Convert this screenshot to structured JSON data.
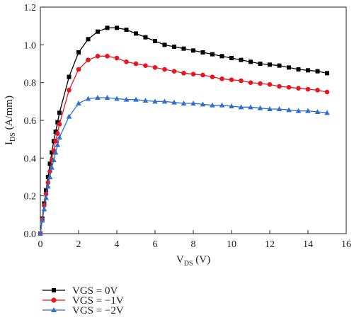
{
  "chart_data": {
    "type": "line",
    "xlabel": {
      "main": "V",
      "sub": "DS",
      "unit": " (V)"
    },
    "ylabel": {
      "main": "I",
      "sub": "DS",
      "unit": " (A/mm)"
    },
    "xlim": [
      0,
      16
    ],
    "ylim": [
      0,
      1.2
    ],
    "xticks": [
      "0",
      "2",
      "4",
      "6",
      "8",
      "10",
      "12",
      "14",
      "16"
    ],
    "yticks": [
      "0.0",
      "0.2",
      "0.4",
      "0.6",
      "0.8",
      "1.0",
      "1.2"
    ],
    "grid": false,
    "legend_position": "bottom-left, below plot",
    "series": [
      {
        "name": "VGS = 0V",
        "color": "#000000",
        "marker": "square",
        "x": [
          0,
          0.1,
          0.2,
          0.3,
          0.4,
          0.5,
          0.6,
          0.7,
          0.8,
          0.9,
          1.0,
          1.5,
          2.0,
          2.5,
          3.0,
          3.5,
          4.0,
          4.5,
          5.0,
          5.5,
          6.0,
          6.5,
          7.0,
          7.5,
          8.0,
          8.5,
          9.0,
          9.5,
          10.0,
          10.5,
          11.0,
          11.5,
          12.0,
          12.5,
          13.0,
          13.5,
          14.0,
          14.5,
          15.0
        ],
        "values": [
          0.0,
          0.08,
          0.16,
          0.23,
          0.3,
          0.37,
          0.43,
          0.49,
          0.54,
          0.59,
          0.64,
          0.83,
          0.96,
          1.03,
          1.07,
          1.09,
          1.09,
          1.08,
          1.06,
          1.04,
          1.02,
          1.0,
          0.99,
          0.98,
          0.97,
          0.96,
          0.95,
          0.94,
          0.93,
          0.92,
          0.91,
          0.9,
          0.895,
          0.89,
          0.88,
          0.87,
          0.865,
          0.86,
          0.85
        ]
      },
      {
        "name": "VGS = −1V",
        "color": "#e8141e",
        "marker": "circle",
        "x": [
          0,
          0.1,
          0.2,
          0.3,
          0.4,
          0.5,
          0.6,
          0.7,
          0.8,
          0.9,
          1.0,
          1.5,
          2.0,
          2.5,
          3.0,
          3.5,
          4.0,
          4.5,
          5.0,
          5.5,
          6.0,
          6.5,
          7.0,
          7.5,
          8.0,
          8.5,
          9.0,
          9.5,
          10.0,
          10.5,
          11.0,
          11.5,
          12.0,
          12.5,
          13.0,
          13.5,
          14.0,
          14.5,
          15.0
        ],
        "values": [
          0.0,
          0.075,
          0.15,
          0.21,
          0.27,
          0.33,
          0.39,
          0.44,
          0.49,
          0.53,
          0.58,
          0.76,
          0.87,
          0.92,
          0.94,
          0.94,
          0.93,
          0.91,
          0.9,
          0.89,
          0.88,
          0.87,
          0.86,
          0.85,
          0.845,
          0.84,
          0.83,
          0.82,
          0.815,
          0.81,
          0.8,
          0.795,
          0.79,
          0.78,
          0.775,
          0.77,
          0.765,
          0.76,
          0.75
        ]
      },
      {
        "name": "VGS = −2V",
        "color": "#2f6fd0",
        "marker": "triangle",
        "x": [
          0,
          0.1,
          0.2,
          0.3,
          0.4,
          0.5,
          0.6,
          0.7,
          0.8,
          0.9,
          1.0,
          1.5,
          2.0,
          2.5,
          3.0,
          3.5,
          4.0,
          4.5,
          5.0,
          5.5,
          6.0,
          6.5,
          7.0,
          7.5,
          8.0,
          8.5,
          9.0,
          9.5,
          10.0,
          10.5,
          11.0,
          11.5,
          12.0,
          12.5,
          13.0,
          13.5,
          14.0,
          14.5,
          15.0
        ],
        "values": [
          0.0,
          0.07,
          0.13,
          0.19,
          0.25,
          0.3,
          0.35,
          0.39,
          0.43,
          0.47,
          0.51,
          0.62,
          0.69,
          0.715,
          0.72,
          0.72,
          0.715,
          0.71,
          0.71,
          0.705,
          0.7,
          0.7,
          0.695,
          0.69,
          0.69,
          0.685,
          0.68,
          0.68,
          0.675,
          0.67,
          0.67,
          0.665,
          0.66,
          0.66,
          0.655,
          0.65,
          0.65,
          0.645,
          0.64
        ]
      }
    ]
  }
}
